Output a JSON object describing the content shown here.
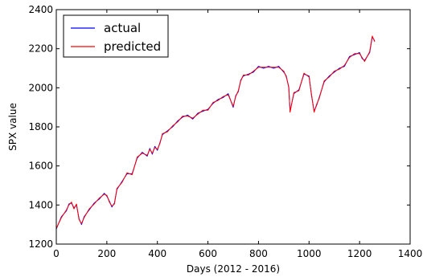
{
  "chart_data": {
    "type": "line",
    "title": "",
    "xlabel": "Days (2012 - 2016)",
    "ylabel": "SPX value",
    "xlim": [
      0,
      1400
    ],
    "ylim": [
      1200,
      2400
    ],
    "xticks": [
      0,
      200,
      400,
      600,
      800,
      1000,
      1200,
      1400
    ],
    "yticks": [
      1200,
      1400,
      1600,
      1800,
      2000,
      2200,
      2400
    ],
    "xtick_labels": [
      "0",
      "200",
      "400",
      "600",
      "800",
      "1000",
      "1200",
      "1400"
    ],
    "ytick_labels": [
      "1200",
      "1400",
      "1600",
      "1800",
      "2000",
      "2200",
      "2400"
    ],
    "grid": false,
    "legend": "top-left",
    "series": [
      {
        "name": "actual",
        "color": "#0000ff",
        "x": [
          0,
          20,
          40,
          50,
          60,
          70,
          80,
          90,
          100,
          110,
          130,
          150,
          170,
          190,
          200,
          210,
          220,
          230,
          240,
          260,
          280,
          300,
          320,
          340,
          360,
          370,
          380,
          390,
          400,
          410,
          420,
          440,
          460,
          480,
          500,
          520,
          540,
          560,
          580,
          600,
          620,
          640,
          660,
          680,
          700,
          710,
          720,
          730,
          740,
          760,
          780,
          800,
          820,
          840,
          860,
          880,
          900,
          910,
          920,
          925,
          940,
          960,
          980,
          1000,
          1010,
          1020,
          1030,
          1040,
          1060,
          1080,
          1100,
          1120,
          1140,
          1160,
          1180,
          1200,
          1210,
          1220,
          1240,
          1250,
          1260
        ],
        "y": [
          1277,
          1340,
          1370,
          1405,
          1410,
          1385,
          1400,
          1330,
          1300,
          1340,
          1375,
          1410,
          1430,
          1460,
          1445,
          1420,
          1390,
          1410,
          1480,
          1520,
          1560,
          1560,
          1640,
          1670,
          1650,
          1690,
          1660,
          1700,
          1680,
          1720,
          1760,
          1780,
          1800,
          1830,
          1850,
          1860,
          1840,
          1870,
          1880,
          1890,
          1920,
          1940,
          1950,
          1970,
          1900,
          1960,
          1980,
          2040,
          2060,
          2070,
          2080,
          2110,
          2100,
          2110,
          2100,
          2110,
          2080,
          2060,
          2000,
          1880,
          1970,
          1990,
          2070,
          2060,
          1960,
          1880,
          1910,
          1950,
          2030,
          2060,
          2080,
          2100,
          2110,
          2160,
          2170,
          2180,
          2150,
          2140,
          2180,
          2260,
          2240
        ]
      },
      {
        "name": "predicted",
        "color": "#ff0000",
        "x": [
          0,
          20,
          40,
          50,
          60,
          70,
          80,
          90,
          100,
          110,
          130,
          150,
          170,
          190,
          200,
          210,
          220,
          230,
          240,
          260,
          280,
          300,
          320,
          340,
          360,
          370,
          380,
          390,
          400,
          410,
          420,
          440,
          460,
          480,
          500,
          520,
          540,
          560,
          580,
          600,
          620,
          640,
          660,
          680,
          700,
          710,
          720,
          730,
          740,
          760,
          780,
          800,
          820,
          840,
          860,
          880,
          900,
          910,
          920,
          925,
          940,
          960,
          980,
          1000,
          1010,
          1020,
          1030,
          1040,
          1060,
          1080,
          1100,
          1120,
          1140,
          1160,
          1180,
          1200,
          1210,
          1220,
          1240,
          1250,
          1260
        ],
        "y": [
          1280,
          1335,
          1375,
          1400,
          1415,
          1380,
          1405,
          1325,
          1305,
          1335,
          1380,
          1405,
          1435,
          1455,
          1450,
          1415,
          1395,
          1405,
          1485,
          1515,
          1565,
          1555,
          1645,
          1665,
          1655,
          1685,
          1665,
          1695,
          1685,
          1715,
          1765,
          1775,
          1805,
          1825,
          1855,
          1855,
          1845,
          1865,
          1885,
          1885,
          1925,
          1935,
          1955,
          1965,
          1905,
          1955,
          1985,
          2035,
          2065,
          2065,
          2085,
          2105,
          2105,
          2105,
          2105,
          2105,
          2085,
          2055,
          2005,
          1875,
          1975,
          1985,
          2075,
          2055,
          1965,
          1875,
          1915,
          1945,
          2035,
          2055,
          2085,
          2095,
          2115,
          2155,
          2175,
          2175,
          2155,
          2135,
          2185,
          2265,
          2235
        ]
      }
    ]
  }
}
